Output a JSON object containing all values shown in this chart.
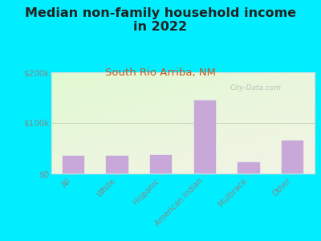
{
  "title": "Median non-family household income\nin 2022",
  "subtitle": "South Rio Arriba, NM",
  "categories": [
    "All",
    "White",
    "Hispanic",
    "American Indian",
    "Multirace",
    "Other"
  ],
  "values": [
    35000,
    35000,
    37000,
    145000,
    22000,
    65000
  ],
  "bar_color": "#c8a8d8",
  "bar_edge_color": "#c8a8d8",
  "ylim": [
    0,
    200000
  ],
  "yticks": [
    0,
    100000,
    200000
  ],
  "ytick_labels": [
    "$0",
    "$100k",
    "$200k"
  ],
  "background_outer": "#00eeff",
  "title_fontsize": 11.5,
  "subtitle_fontsize": 9.5,
  "subtitle_color": "#cc5522",
  "title_color": "#222222",
  "watermark": "City-Data.com",
  "grid_color": "#c8d8b8",
  "tick_color": "#888888",
  "plot_border_color": "#cccccc"
}
